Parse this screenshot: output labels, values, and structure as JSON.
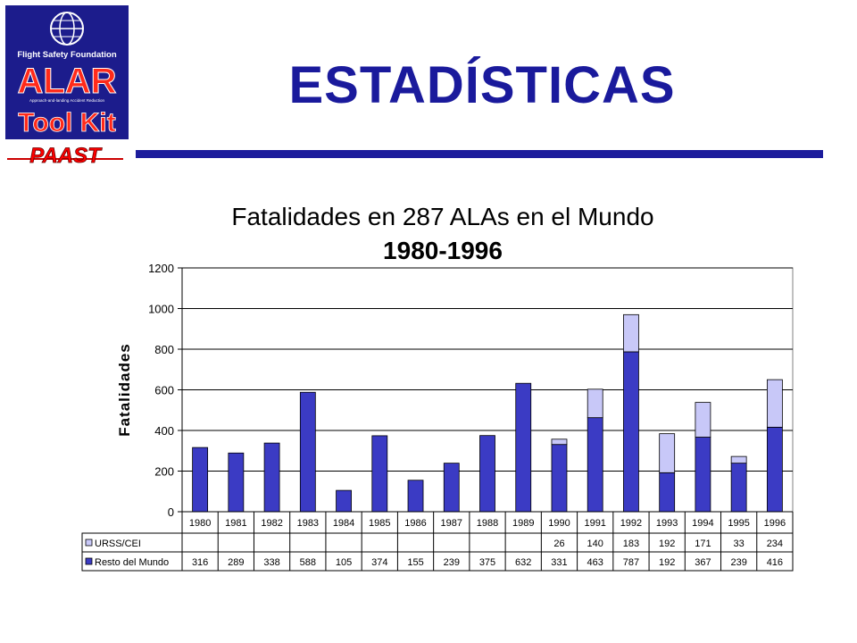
{
  "slide": {
    "title": "ESTADÍSTICAS"
  },
  "logo": {
    "org": "Flight Safety Foundation",
    "name": "ALAR",
    "tagline": "Approach-and-landing Accident Reduction",
    "product": "Tool Kit",
    "program": "PAAST"
  },
  "colors": {
    "brand_blue": "#1c1c9c",
    "resto": "#3b3bc4",
    "urss": "#c8c8f8"
  },
  "chart_data": {
    "type": "bar",
    "stacked": true,
    "title": "Fatalidades en 287 ALAs en el Mundo",
    "subtitle": "1980-1996",
    "ylabel": "Fatalidades",
    "xlabel": "",
    "ylim": [
      0,
      1200
    ],
    "yticks": [
      0,
      200,
      400,
      600,
      800,
      1000,
      1200
    ],
    "grid": true,
    "legend": "data-table-left",
    "categories": [
      "1980",
      "1981",
      "1982",
      "1983",
      "1984",
      "1985",
      "1986",
      "1987",
      "1988",
      "1989",
      "1990",
      "1991",
      "1992",
      "1993",
      "1994",
      "1995",
      "1996"
    ],
    "series": [
      {
        "name": "Resto del Mundo",
        "color": "#3b3bc4",
        "values": [
          316,
          289,
          338,
          588,
          105,
          374,
          155,
          239,
          375,
          632,
          331,
          463,
          787,
          192,
          367,
          239,
          416
        ]
      },
      {
        "name": "URSS/CEI",
        "color": "#c8c8f8",
        "values": [
          null,
          null,
          null,
          null,
          null,
          null,
          null,
          null,
          null,
          null,
          26,
          140,
          183,
          192,
          171,
          33,
          234
        ]
      }
    ]
  }
}
